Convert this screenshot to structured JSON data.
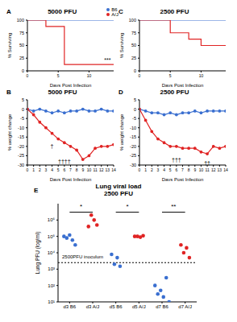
{
  "chart_data": [
    {
      "panel": "A",
      "type": "line",
      "title": "5000 PFU",
      "x_label": "Days Post Infection",
      "y_label": "% Surviving",
      "xlim": [
        0,
        14
      ],
      "xticks": [
        0,
        5,
        10
      ],
      "ylim": [
        0,
        100
      ],
      "yticks": [
        0,
        25,
        50,
        75,
        100
      ],
      "legend": "top right",
      "series": [
        {
          "name": "B6",
          "color": "#3a6fd0",
          "line_style": "step",
          "x": [
            0,
            14
          ],
          "values": [
            100,
            100
          ]
        },
        {
          "name": "A/J",
          "color": "#e02424",
          "line_style": "step",
          "x": [
            0,
            3,
            6,
            14
          ],
          "values": [
            100,
            87.5,
            12.5,
            12.5
          ]
        }
      ],
      "annotations": [
        {
          "text": "***",
          "x": 13,
          "y": 22
        }
      ]
    },
    {
      "panel": "C",
      "type": "line",
      "title": "2500 PFU",
      "x_label": "Days Post Infection",
      "y_label": "% Surviving",
      "xlim": [
        0,
        14
      ],
      "xticks": [
        0,
        5,
        10
      ],
      "ylim": [
        0,
        100
      ],
      "yticks": [
        0,
        25,
        50,
        75,
        100
      ],
      "series": [
        {
          "color": "#3a6fd0",
          "line_style": "step",
          "x": [
            0,
            14
          ],
          "values": [
            100,
            100
          ]
        },
        {
          "color": "#e02424",
          "line_style": "step",
          "x": [
            0,
            5,
            8,
            10,
            14
          ],
          "values": [
            100,
            75,
            62.5,
            50,
            50
          ]
        }
      ]
    },
    {
      "panel": "B",
      "type": "line",
      "title": "5000 PFU",
      "x_label": "Days Post Infection",
      "y_label": "% weight change",
      "x": [
        0,
        1,
        2,
        3,
        4,
        5,
        6,
        7,
        8,
        9,
        10,
        11,
        12,
        13,
        14
      ],
      "xlim": [
        0,
        14
      ],
      "xticks": [
        0,
        1,
        2,
        3,
        4,
        5,
        6,
        7,
        8,
        9,
        10,
        11,
        12,
        13,
        14
      ],
      "ylim": [
        -30,
        5
      ],
      "yticks": [
        -30,
        -25,
        -20,
        -15,
        -10,
        -5,
        0,
        5
      ],
      "series": [
        {
          "color": "#3a6fd0",
          "marker": "circle",
          "values": [
            0,
            -1,
            0,
            -1,
            -2,
            -1,
            -2,
            -1,
            -1,
            0,
            -1,
            -1,
            0,
            -1,
            -1
          ]
        },
        {
          "color": "#e02424",
          "marker": "circle",
          "values": [
            0,
            -3,
            -7,
            -10,
            -13,
            -16,
            -18,
            -20,
            -22,
            -27,
            -25,
            -21,
            -20,
            -20,
            -19
          ]
        }
      ],
      "annotations": [
        {
          "text": "†",
          "x": 4,
          "y": -20
        },
        {
          "text": "††††",
          "x": 6,
          "y": -28
        }
      ]
    },
    {
      "panel": "D",
      "type": "line",
      "title": "2500 PFU",
      "x_label": "Days Post Infection",
      "y_label": "% weight change",
      "x": [
        0,
        1,
        2,
        3,
        4,
        5,
        6,
        7,
        8,
        9,
        10,
        11,
        12,
        13,
        14
      ],
      "xlim": [
        0,
        14
      ],
      "xticks": [
        0,
        1,
        2,
        3,
        4,
        5,
        6,
        7,
        8,
        9,
        10,
        11,
        12,
        13,
        14
      ],
      "ylim": [
        -30,
        5
      ],
      "yticks": [
        -30,
        -25,
        -20,
        -15,
        -10,
        -5,
        0,
        5
      ],
      "series": [
        {
          "color": "#3a6fd0",
          "marker": "circle",
          "values": [
            0,
            -1,
            -2,
            -2,
            -3,
            -2,
            -3,
            -2,
            -2,
            -1,
            -2,
            -1,
            -1,
            -1,
            -1
          ]
        },
        {
          "color": "#e02424",
          "marker": "circle",
          "values": [
            0,
            -6,
            -12,
            -16,
            -18,
            -20,
            -20,
            -21,
            -21,
            -21,
            -23,
            -24,
            -20,
            -21,
            -20
          ]
        }
      ],
      "annotations": [
        {
          "text": "†††",
          "x": 6,
          "y": -27
        },
        {
          "text": "††",
          "x": 11,
          "y": -29
        }
      ]
    },
    {
      "panel": "E",
      "type": "scatter",
      "title": "Lung viral load",
      "subtitle": "2500 PFU",
      "y_label": "Lung PFU (log/ml)",
      "log": "y",
      "categories": [
        "d3 B6",
        "d3 A/J",
        "d5 B6",
        "d5 A/J",
        "d7 B6",
        "d7 A/J"
      ],
      "colors": [
        "#3a6fd0",
        "#e02424",
        "#3a6fd0",
        "#e02424",
        "#3a6fd0",
        "#e02424"
      ],
      "values": [
        [
          100000,
          80000,
          120000,
          60000,
          30000
        ],
        [
          400000,
          2000000,
          1000000,
          500000
        ],
        [
          8000,
          2000,
          5000,
          1500
        ],
        [
          100000,
          100000,
          90000,
          110000
        ],
        [
          100,
          30,
          50,
          20,
          300,
          10
        ],
        [
          30000,
          10000,
          20000,
          5000
        ]
      ],
      "ylim": [
        10,
        10000000
      ],
      "yticks": [
        {
          "value": 10,
          "label": "10¹"
        },
        {
          "value": 100,
          "label": "10²"
        },
        {
          "value": 1000,
          "label": "10³"
        },
        {
          "value": 10000,
          "label": "10⁴"
        },
        {
          "value": 100000,
          "label": "10⁵"
        },
        {
          "value": 1000000,
          "label": "10⁶"
        }
      ],
      "reference_line": {
        "value": 2500,
        "label": "2500PFU inoculum",
        "line_style": "dashed"
      },
      "annotations": [
        {
          "text": "*",
          "between": [
            0,
            1
          ],
          "y": 3000000
        },
        {
          "text": "*",
          "between": [
            2,
            3
          ],
          "y": 3000000
        },
        {
          "text": "**",
          "between": [
            4,
            5
          ],
          "y": 3000000
        }
      ]
    }
  ]
}
